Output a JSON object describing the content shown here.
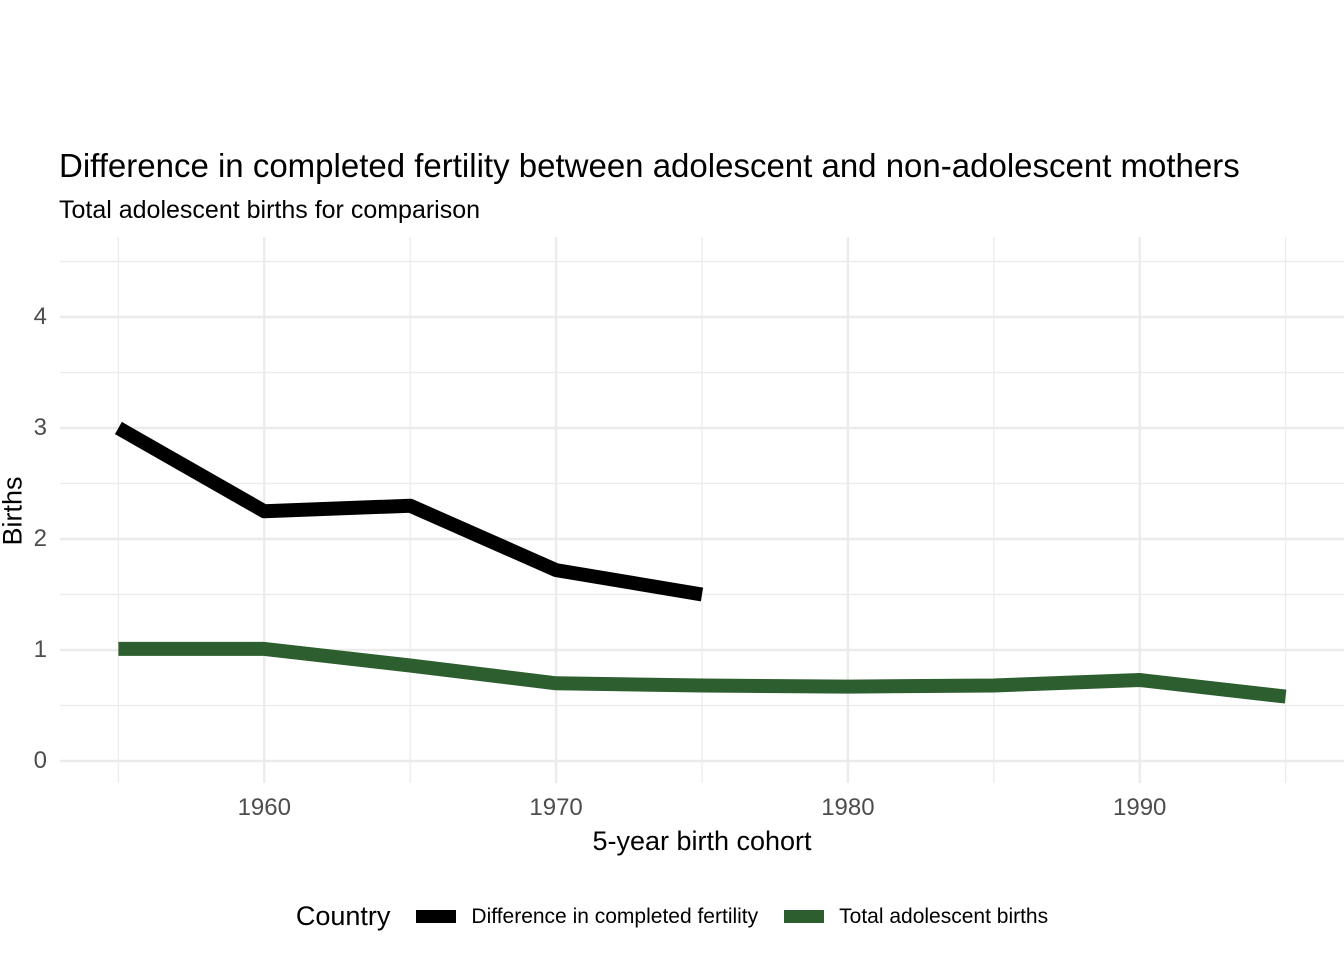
{
  "colors": {
    "background": "#ffffff",
    "grid": "#ebebeb",
    "tick_label": "#4d4d4d",
    "series_black": "#000000",
    "series_green": "#2d5e2f"
  },
  "chart_data": {
    "type": "line",
    "title": "Difference in completed fertility between adolescent and non-adolescent mothers",
    "subtitle": "Total adolescent births for comparison",
    "xlabel": "5-year birth cohort",
    "ylabel": "Births",
    "xlim": [
      1953,
      1997
    ],
    "ylim": [
      -0.2,
      4.72
    ],
    "grid": true,
    "legend_position": "bottom",
    "legend_title": "Country",
    "x_ticks_major": [
      1960,
      1970,
      1980,
      1990
    ],
    "x_ticks_minor": [
      1955,
      1965,
      1975,
      1985,
      1995
    ],
    "y_ticks_major": [
      0,
      1,
      2,
      3,
      4
    ],
    "y_ticks_minor": [
      0.5,
      1.5,
      2.5,
      3.5,
      4.5
    ],
    "series": [
      {
        "name": "Difference in completed fertility",
        "color": "#000000",
        "x": [
          1955,
          1960,
          1965,
          1970,
          1975
        ],
        "y": [
          3.0,
          2.25,
          2.3,
          1.72,
          1.5
        ]
      },
      {
        "name": "Total adolescent births",
        "color": "#2d5e2f",
        "x": [
          1955,
          1960,
          1965,
          1970,
          1975,
          1980,
          1985,
          1990,
          1995
        ],
        "y": [
          1.01,
          1.01,
          0.86,
          0.7,
          0.68,
          0.67,
          0.68,
          0.73,
          0.58
        ]
      }
    ]
  }
}
